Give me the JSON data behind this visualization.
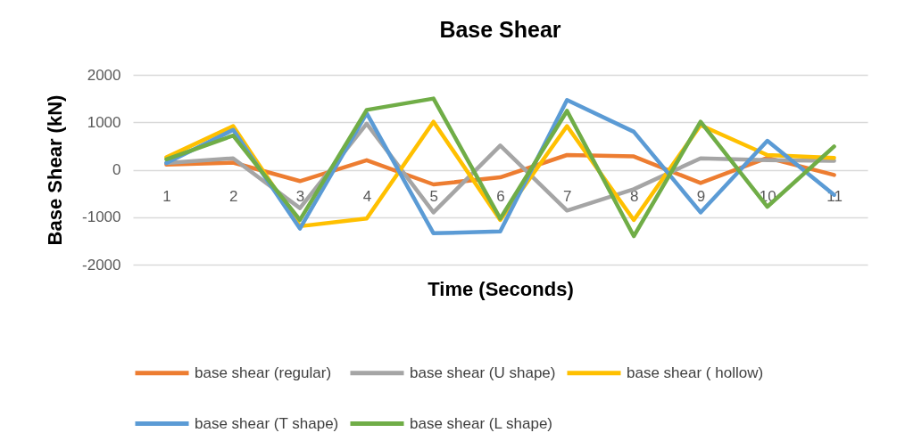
{
  "chart_data": {
    "type": "line",
    "title": "Base Shear",
    "xlabel": "Time (Seconds)",
    "ylabel": "Base Shear (kN)",
    "categories": [
      "1",
      "2",
      "3",
      "4",
      "5",
      "6",
      "7",
      "8",
      "9",
      "10",
      "11"
    ],
    "series": [
      {
        "name": "base shear (regular)",
        "color": "#ed7d31",
        "values": [
          110,
          150,
          -240,
          200,
          -310,
          -160,
          310,
          280,
          -280,
          250,
          -110
        ]
      },
      {
        "name": "base shear (U shape)",
        "color": "#a5a5a5",
        "values": [
          140,
          240,
          -810,
          970,
          -900,
          510,
          -860,
          -410,
          240,
          200,
          190
        ]
      },
      {
        "name": "base shear ( hollow)",
        "color": "#ffc000",
        "values": [
          260,
          920,
          -1190,
          -1030,
          1010,
          -1060,
          920,
          -1060,
          940,
          310,
          250
        ]
      },
      {
        "name": "base shear (T shape)",
        "color": "#5b9bd5",
        "values": [
          140,
          840,
          -1240,
          1190,
          -1340,
          -1300,
          1470,
          800,
          -900,
          610,
          -530
        ]
      },
      {
        "name": "base shear (L shape)",
        "color": "#70ad47",
        "values": [
          220,
          720,
          -1060,
          1260,
          1500,
          -1030,
          1240,
          -1400,
          1010,
          -780,
          490
        ]
      }
    ],
    "ylim": [
      -2000,
      2000
    ],
    "yticks": [
      -2000,
      -1000,
      0,
      1000,
      2000
    ],
    "grid": "y",
    "legend": "bottom",
    "marker": "none",
    "line_style": "solid"
  }
}
